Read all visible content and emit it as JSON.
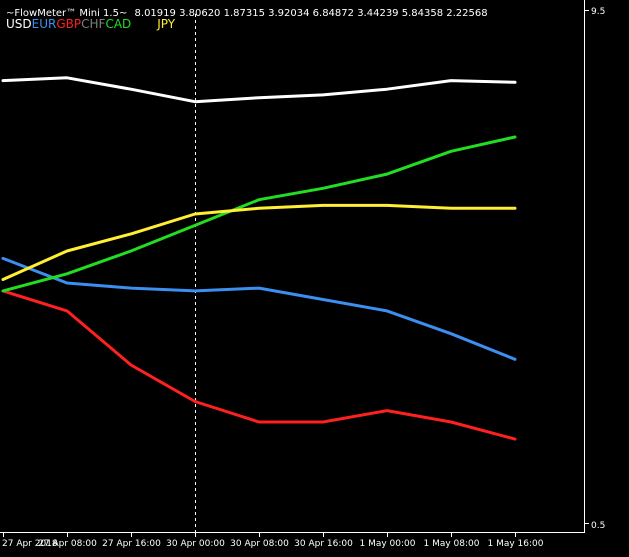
{
  "header": {
    "title": "~FlowMeter™ Mini 1.5~",
    "values_text": "8.01919 3.80620 1.87315 3.92034 6.84872 3.44239 5.84358 2.22568"
  },
  "legend": [
    {
      "label": "USD",
      "color": "#ffffff"
    },
    {
      "label": "EUR",
      "color": "#3c8ff0"
    },
    {
      "label": "GBP",
      "color": "#ff2020"
    },
    {
      "label": "CHF",
      "color": "#808080"
    },
    {
      "label": "CAD",
      "color": "#22dd22"
    },
    {
      "label": "JPY",
      "color": "#ffee33"
    }
  ],
  "chart_data": {
    "type": "line",
    "x": [
      "27 Apr 2018",
      "27 Apr 08:00",
      "27 Apr 16:00",
      "30 Apr 00:00",
      "30 Apr 08:00",
      "30 Apr 16:00",
      "1 May 00:00",
      "1 May 08:00",
      "1 May 16:00"
    ],
    "ylim": [
      0.5,
      9.5
    ],
    "y_ticks": [
      "9.5",
      "0.5"
    ],
    "grid": false,
    "cursor_line_at": "30 Apr 00:00",
    "series": [
      {
        "name": "USD",
        "color": "#ffffff",
        "values": [
          8.27,
          8.32,
          8.12,
          7.9,
          7.97,
          8.02,
          8.12,
          8.27,
          8.24
        ]
      },
      {
        "name": "EUR",
        "color": "#3c8ff0",
        "values": [
          5.15,
          4.72,
          4.63,
          4.58,
          4.63,
          4.43,
          4.23,
          3.83,
          3.38
        ]
      },
      {
        "name": "GBP",
        "color": "#ff2020",
        "values": [
          4.58,
          4.23,
          3.28,
          2.64,
          2.28,
          2.28,
          2.48,
          2.28,
          1.98
        ]
      },
      {
        "name": "CAD",
        "color": "#22dd22",
        "values": [
          4.58,
          4.88,
          5.28,
          5.73,
          6.18,
          6.38,
          6.63,
          7.03,
          7.28
        ]
      },
      {
        "name": "JPY",
        "color": "#ffee33",
        "values": [
          4.78,
          5.28,
          5.58,
          5.93,
          6.03,
          6.08,
          6.08,
          6.03,
          6.03
        ]
      }
    ]
  }
}
